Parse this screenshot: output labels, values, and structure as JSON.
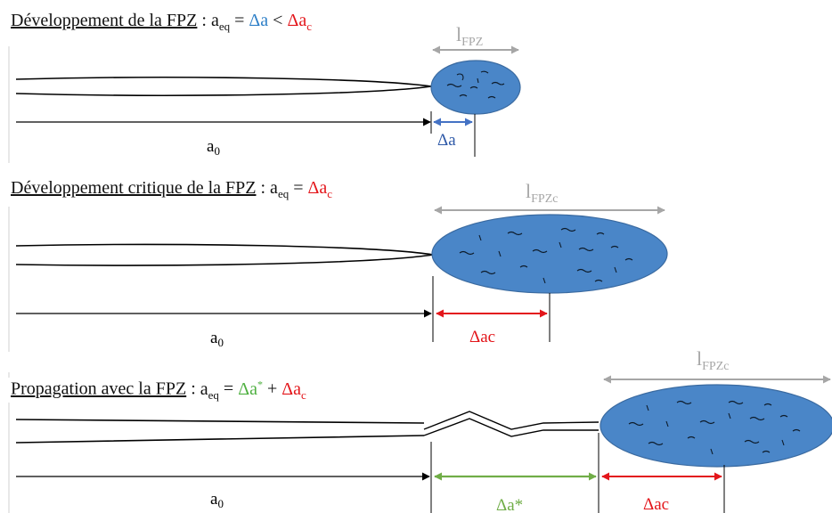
{
  "panel1": {
    "title_underlined": "Développement  de la FPZ",
    "title_colon": " : ",
    "eq_a": "a",
    "eq_a_sub": "eq",
    "eq_equals": " = ",
    "eq_delta_a": "Δa",
    "eq_less": " < ",
    "eq_delta_ac": "Δa",
    "eq_delta_ac_sub": "c",
    "length_label": "l",
    "length_label_sub": "FPZ",
    "a0_label": "a",
    "a0_sub": "0",
    "delta_label": "Δa"
  },
  "panel2": {
    "title_underlined": "Développement  critique de la FPZ",
    "title_colon": " : ",
    "eq_a": "a",
    "eq_a_sub": "eq",
    "eq_equals": " =  ",
    "eq_delta_ac": "Δa",
    "eq_delta_ac_sub": "c",
    "length_label": "l",
    "length_label_sub": "FPZc",
    "a0_label": "a",
    "a0_sub": "0",
    "delta_label": "Δac"
  },
  "panel3": {
    "title_underlined": "Propagation  avec la FPZ",
    "title_colon": " : ",
    "eq_a": "a",
    "eq_a_sub": "eq",
    "eq_equals": " = ",
    "eq_delta_astar": "Δa",
    "eq_delta_astar_sup": "*",
    "eq_plus": " + ",
    "eq_delta_ac": "Δa",
    "eq_delta_ac_sub": "c",
    "length_label": "l",
    "length_label_sub": "FPZc",
    "a0_label": "a",
    "a0_sub": "0",
    "delta_star_label": "Δa*",
    "delta_c_label": "Δac"
  },
  "colors": {
    "fpz_fill": "#4a86c8",
    "fpz_stroke": "#3a6aa0",
    "gray_arrow": "#a6a6a6",
    "blue_arrow": "#4472c4",
    "red": "#e3161b",
    "green": "#70ad47",
    "black": "#000000"
  }
}
